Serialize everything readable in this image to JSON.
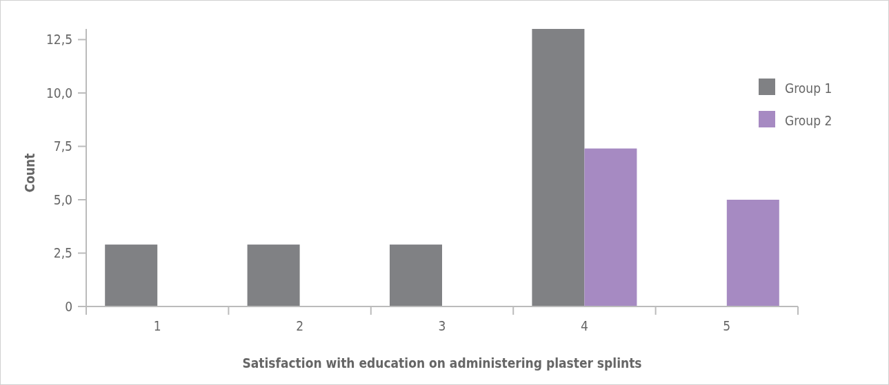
{
  "chart_data": {
    "type": "bar",
    "xlabel": "Satisfaction with education on administering plaster splints",
    "ylabel": "Count",
    "categories": [
      "1",
      "2",
      "3",
      "4",
      "5"
    ],
    "series": [
      {
        "name": "Group 1",
        "color": "#808184",
        "values": [
          2.9,
          2.9,
          2.9,
          13,
          null
        ]
      },
      {
        "name": "Group 2",
        "color": "#a68ac2",
        "values": [
          null,
          null,
          null,
          7.4,
          5.0
        ]
      }
    ],
    "ylim": [
      0,
      13
    ],
    "yticks": [
      0,
      {
        "value": 2.5,
        "label": "2,5"
      },
      {
        "value": 5,
        "label": "5,0"
      },
      {
        "value": 7.5,
        "label": "7,5"
      },
      {
        "value": 10,
        "label": "10,0"
      },
      {
        "value": 12.5,
        "label": "12,5"
      }
    ],
    "grid": false,
    "legend": "top right"
  }
}
